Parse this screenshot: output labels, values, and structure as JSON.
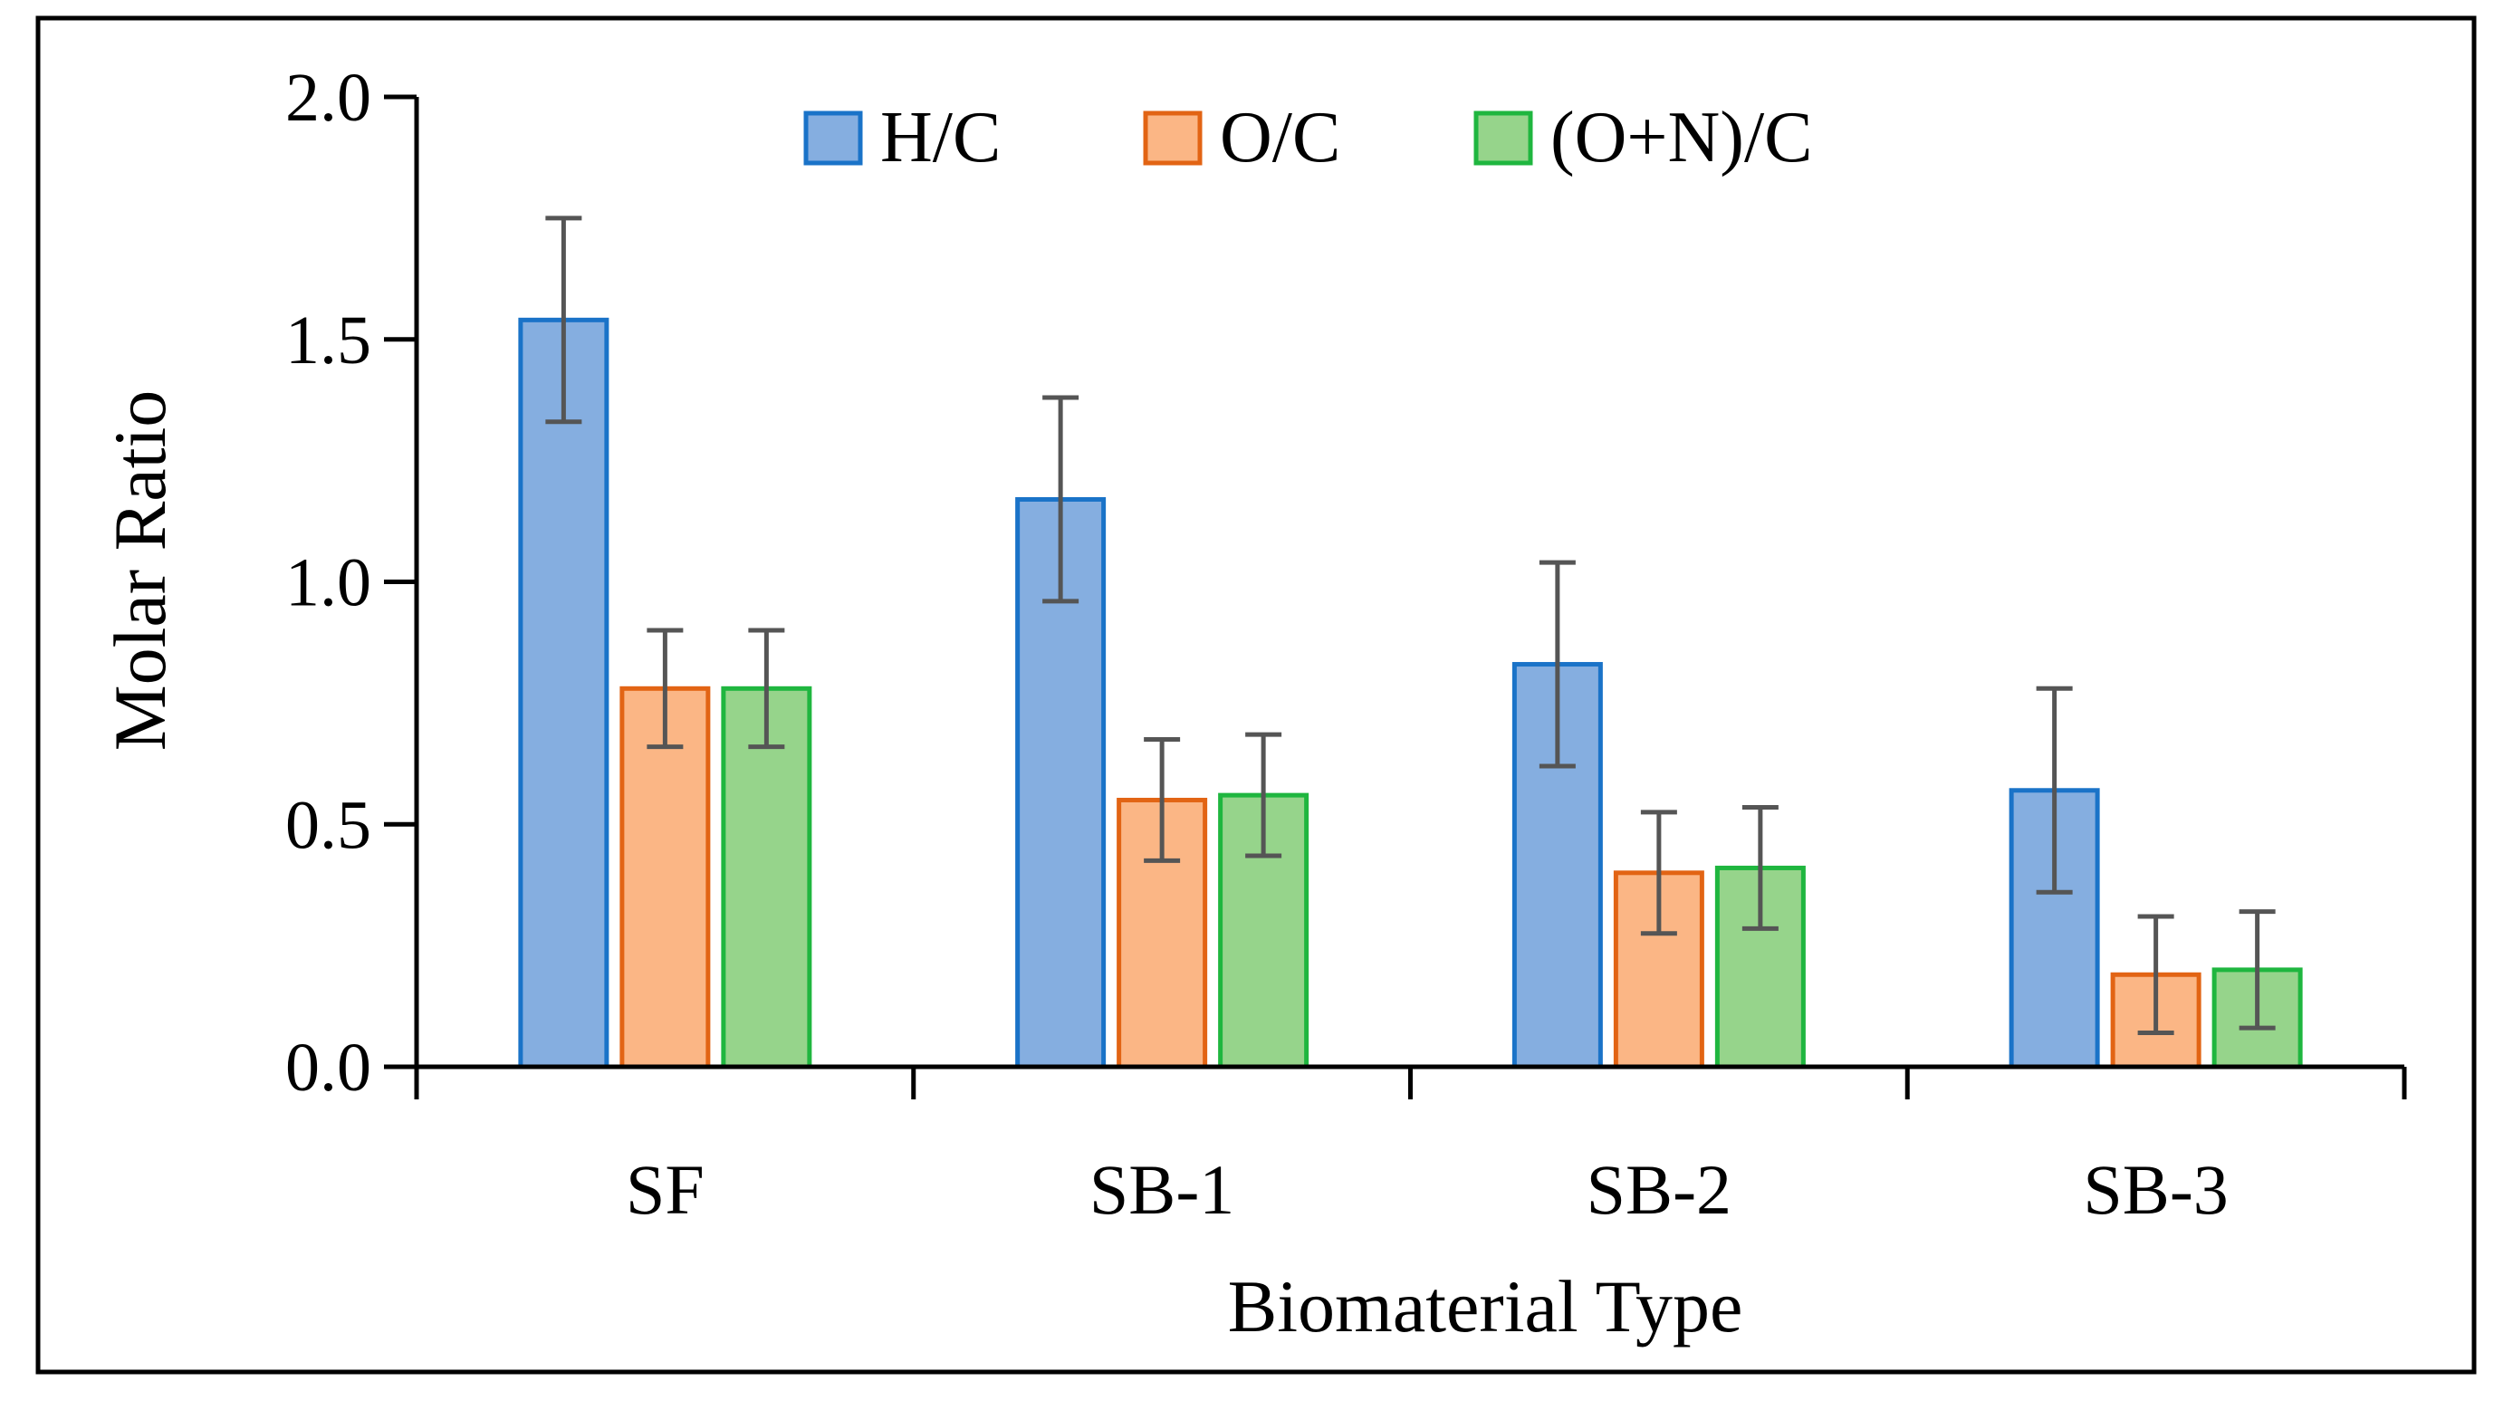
{
  "chart_data": {
    "type": "bar",
    "title": "",
    "xlabel": "Biomaterial Type",
    "ylabel": "Molar Ratio",
    "categories": [
      "SF",
      "SB-1",
      "SB-2",
      "SB-3"
    ],
    "ylim": [
      0,
      2.0
    ],
    "yticks": [
      0,
      0.5,
      1.0,
      1.5,
      2.0
    ],
    "ytick_labels": [
      "0.0",
      "0.5",
      "1.0",
      "1.5",
      "2.0"
    ],
    "grid": false,
    "legend_position": "top-center",
    "series": [
      {
        "name": "H/C",
        "fill": "#85aee0",
        "stroke": "#1a73c8",
        "values": [
          1.54,
          1.17,
          0.83,
          0.57
        ],
        "errors": [
          0.21,
          0.21,
          0.21,
          0.21
        ]
      },
      {
        "name": "O/C",
        "fill": "#fbb685",
        "stroke": "#e26414",
        "values": [
          0.78,
          0.55,
          0.4,
          0.19
        ],
        "errors": [
          0.12,
          0.125,
          0.125,
          0.12
        ]
      },
      {
        "name": "(O+N)/C",
        "fill": "#96d48b",
        "stroke": "#1fb63f",
        "values": [
          0.78,
          0.56,
          0.41,
          0.2
        ],
        "errors": [
          0.12,
          0.125,
          0.125,
          0.12
        ]
      }
    ],
    "error_bar_color": "#555555"
  }
}
